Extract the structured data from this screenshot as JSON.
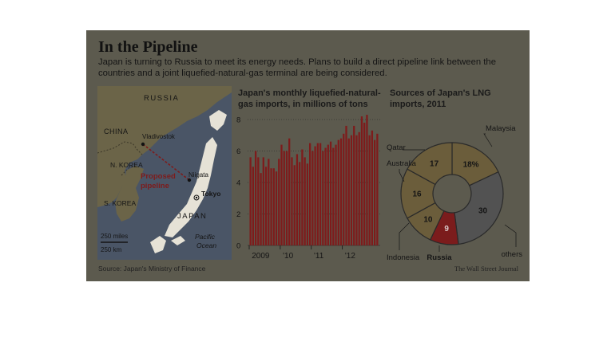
{
  "header": {
    "title": "In the Pipeline",
    "subtitle": "Japan is turning to Russia to meet its energy needs. Plans to build a direct pipeline link between the countries and a joint liquefied-natural-gas terminal are being considered."
  },
  "map": {
    "labels": {
      "russia": "RUSSIA",
      "china": "CHINA",
      "vladivostok": "Vladivostok",
      "n_korea": "N. KOREA",
      "s_korea": "S. KOREA",
      "proposed_line1": "Proposed",
      "proposed_line2": "pipeline",
      "niigata": "Niigata",
      "tokyo": "Tokyo",
      "japan": "JAPAN",
      "pacific_line1": "Pacific",
      "pacific_line2": "Ocean",
      "scale_miles": "250 miles",
      "scale_km": "250 km"
    }
  },
  "footer": {
    "source": "Source: Japan's Ministry of Finance",
    "credit": "The Wall Street Journal"
  },
  "colors": {
    "bar": "#7e1b1b",
    "pie_light": "#6b5d3b",
    "pie_russia": "#7b1c1c",
    "pie_dark": "#525252"
  },
  "chart_data": [
    {
      "type": "bar",
      "title": "Japan's monthly liquefied-natural-gas imports, in millions of tons",
      "x_tick_labels": [
        "2009",
        "'10",
        "'11",
        "'12"
      ],
      "y_ticks": [
        0,
        2,
        4,
        6,
        8
      ],
      "ylim": [
        0,
        8
      ],
      "grid": true,
      "values": [
        5.6,
        5.0,
        6.0,
        5.6,
        4.6,
        5.6,
        5.0,
        5.5,
        4.9,
        4.9,
        4.7,
        5.5,
        6.4,
        6.0,
        6.0,
        6.8,
        5.6,
        5.1,
        5.8,
        5.3,
        6.1,
        5.6,
        5.2,
        6.5,
        6.0,
        6.3,
        6.5,
        6.5,
        6.0,
        6.2,
        6.4,
        6.6,
        6.2,
        6.4,
        6.7,
        6.8,
        7.1,
        7.6,
        6.8,
        7.0,
        7.6,
        7.0,
        7.2,
        8.2,
        7.8,
        8.3,
        7.0,
        7.3,
        6.7,
        7.1
      ]
    },
    {
      "type": "pie",
      "title": "Sources of Japan's LNG imports, 2011",
      "slices": [
        {
          "label": "Malaysia",
          "value": 18,
          "value_label": "18%"
        },
        {
          "label": "others",
          "value": 30,
          "value_label": "30"
        },
        {
          "label": "Russia",
          "value": 9,
          "value_label": "9"
        },
        {
          "label": "Indonesia",
          "value": 10,
          "value_label": "10"
        },
        {
          "label": "Australia",
          "value": 16,
          "value_label": "16"
        },
        {
          "label": "Qatar",
          "value": 17,
          "value_label": "17"
        }
      ]
    }
  ]
}
